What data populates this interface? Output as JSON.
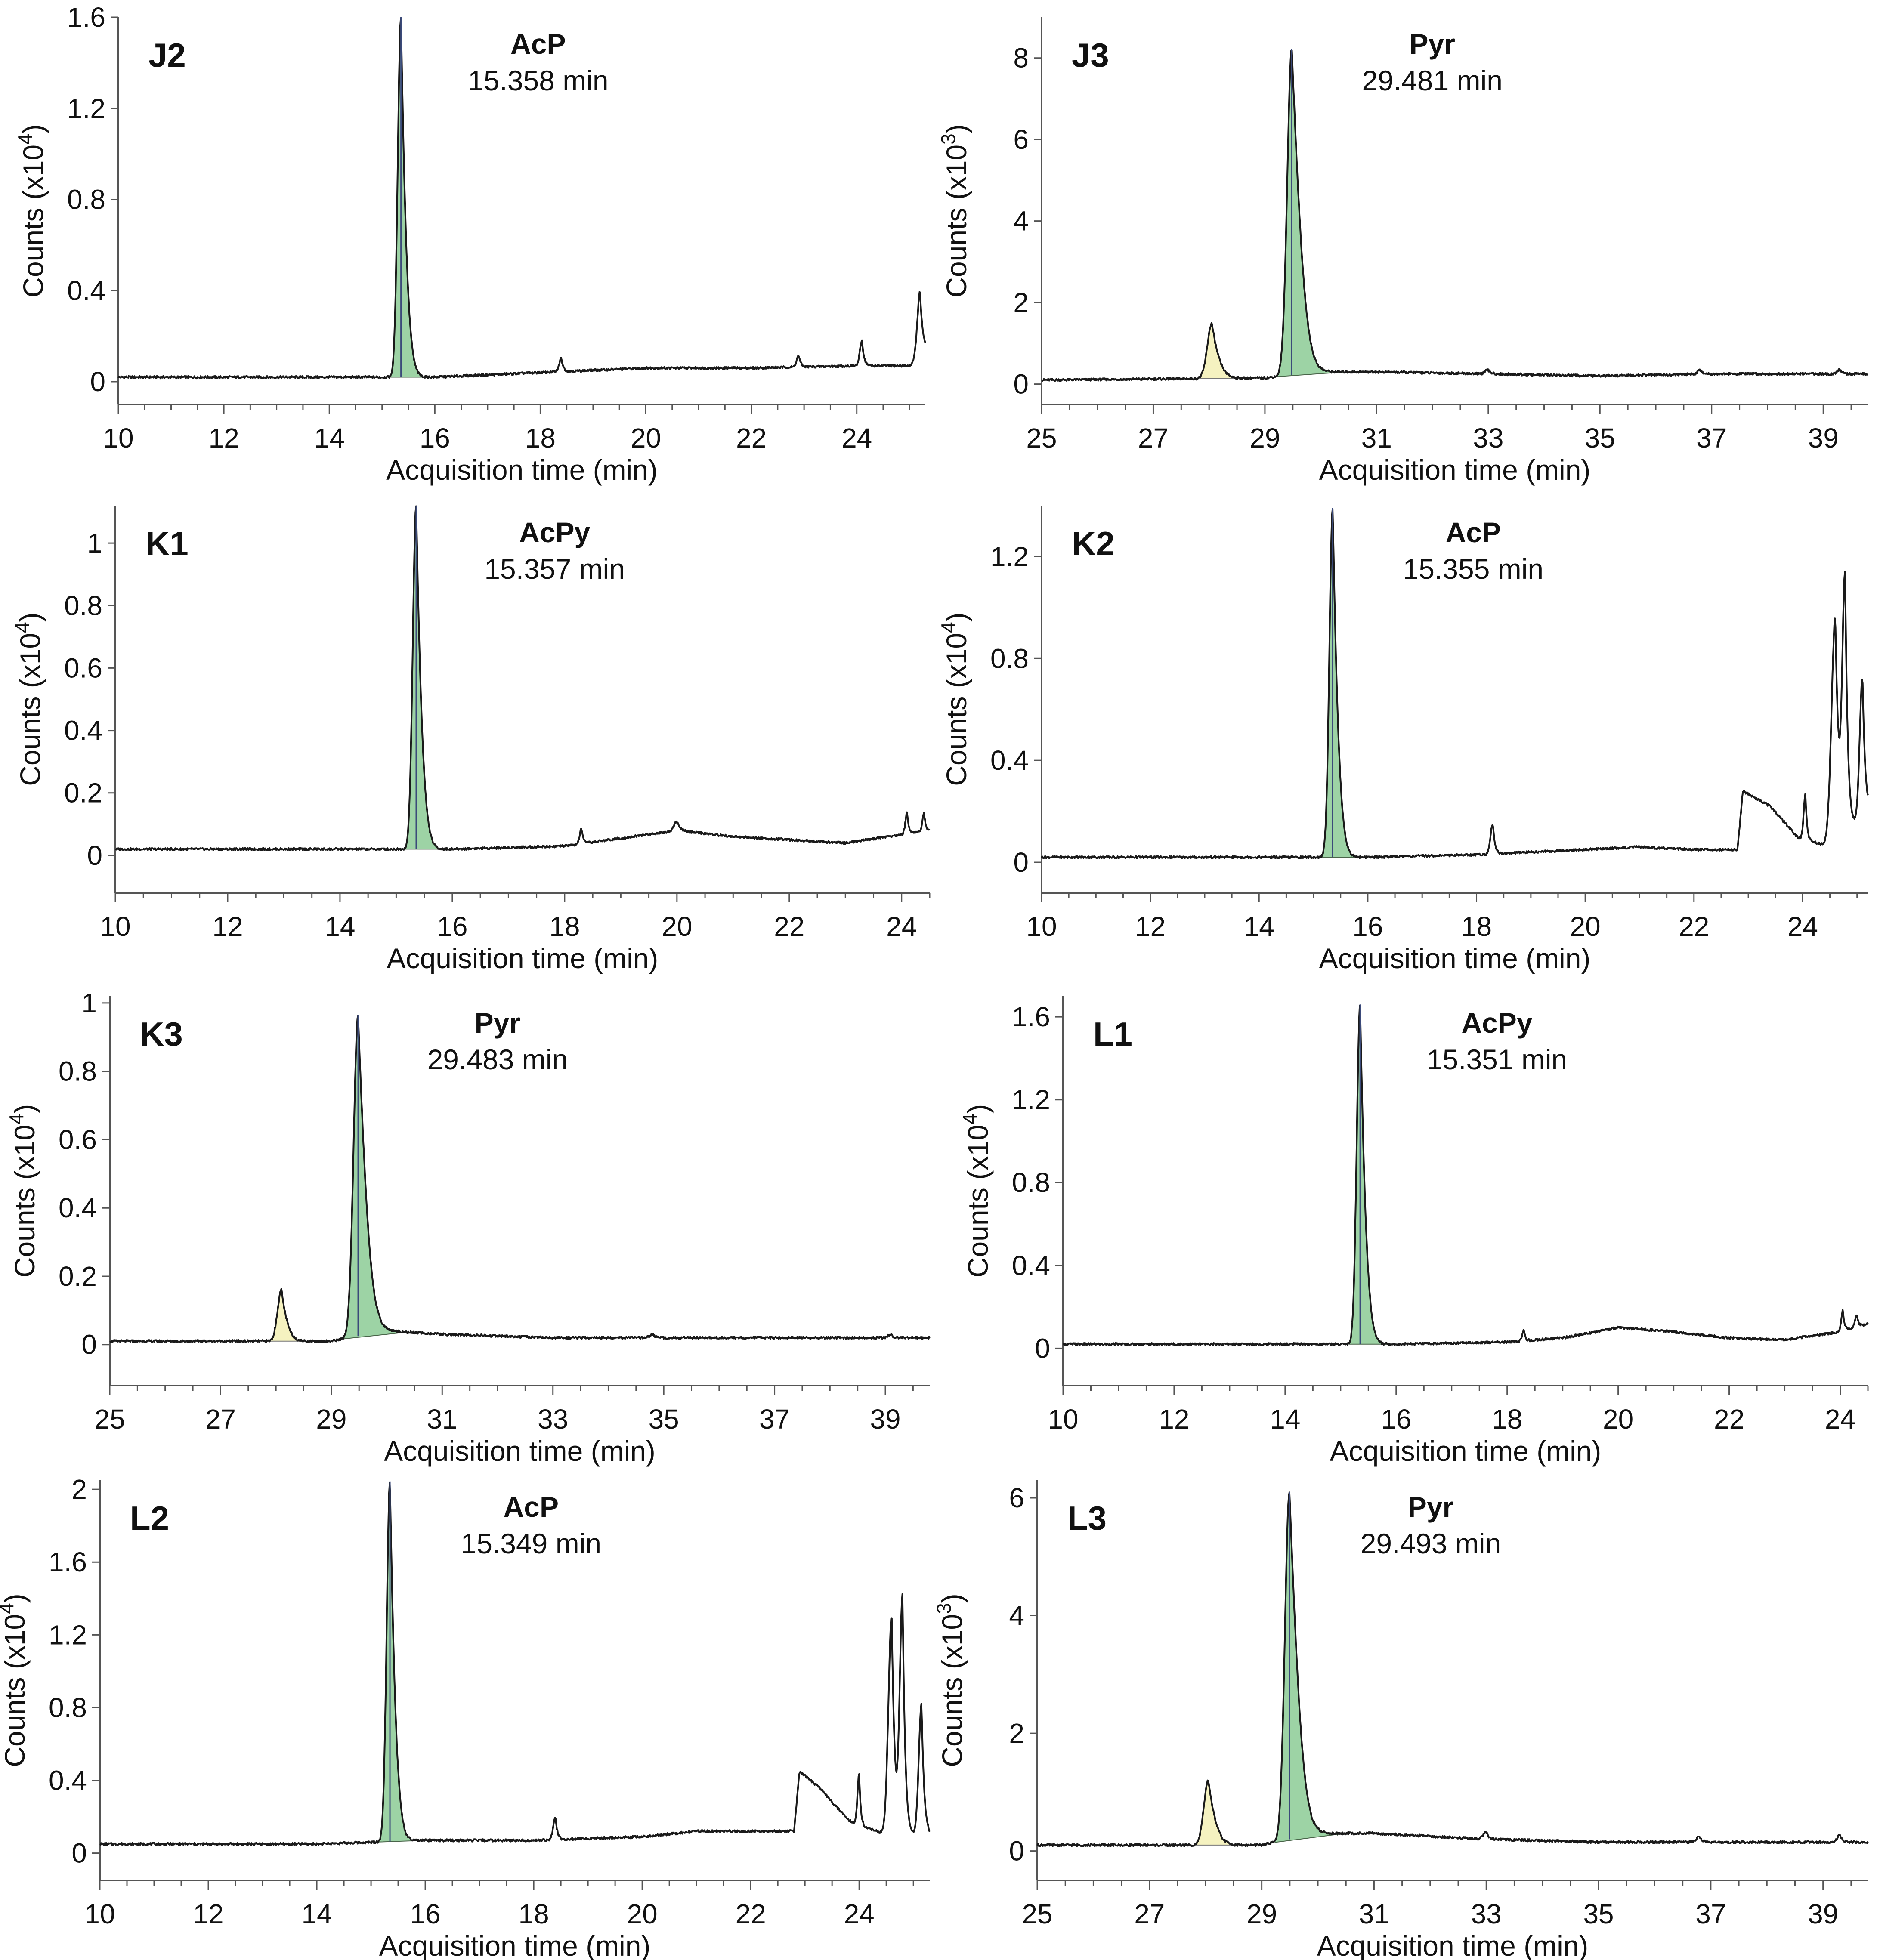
{
  "figure_title": "",
  "chart_data": [
    {
      "id": "J2",
      "type": "line",
      "panel_label": "J2",
      "peak_name": "AcP",
      "peak_time": "15.358 min",
      "xlabel": "Acquisition time (min)",
      "ylabel_prefix": "Counts (x10",
      "ylabel_exp": "4",
      "ylabel_suffix": ")",
      "xlim": [
        10,
        25.3
      ],
      "ylim": [
        -0.1,
        1.6
      ],
      "xticks": [
        10,
        12,
        14,
        16,
        18,
        20,
        22,
        24
      ],
      "xtick_labels": [
        "10",
        "12",
        "14",
        "16",
        "18",
        "20",
        "22",
        "24"
      ],
      "yticks": [
        0,
        0.4,
        0.8,
        1.2,
        1.6
      ],
      "ytick_labels": [
        "0",
        "0.4",
        "0.8",
        "1.2",
        "1.6"
      ],
      "baseline": [
        [
          10,
          0.02
        ],
        [
          14,
          0.02
        ],
        [
          16,
          0.02
        ],
        [
          18,
          0.04
        ],
        [
          20,
          0.06
        ],
        [
          22,
          0.06
        ],
        [
          24,
          0.07
        ],
        [
          25.0,
          0.07
        ],
        [
          25.3,
          0.14
        ]
      ],
      "main_peak": {
        "t": 15.358,
        "h": 1.58,
        "w": 0.06,
        "tail": 0.12
      },
      "minor_peaks": [
        {
          "t": 18.4,
          "h": 0.06,
          "w": 0.04
        },
        {
          "t": 22.9,
          "h": 0.05,
          "w": 0.04
        },
        {
          "t": 24.1,
          "h": 0.11,
          "w": 0.04
        },
        {
          "t": 25.2,
          "h": 0.28,
          "w": 0.05
        }
      ]
    },
    {
      "id": "J3",
      "type": "line",
      "panel_label": "J3",
      "peak_name": "Pyr",
      "peak_time": "29.481 min",
      "xlabel": "Acquisition time (min)",
      "ylabel_prefix": "Counts (x10",
      "ylabel_exp": "3",
      "ylabel_suffix": ")",
      "xlim": [
        25,
        39.8
      ],
      "ylim": [
        -0.5,
        9
      ],
      "xticks": [
        25,
        27,
        29,
        31,
        33,
        35,
        37,
        39
      ],
      "xtick_labels": [
        "25",
        "27",
        "29",
        "31",
        "33",
        "35",
        "37",
        "39"
      ],
      "yticks": [
        0,
        2,
        4,
        6,
        8
      ],
      "ytick_labels": [
        "0",
        "2",
        "4",
        "6",
        "8"
      ],
      "baseline": [
        [
          25,
          0.1
        ],
        [
          29,
          0.15
        ],
        [
          30,
          0.3
        ],
        [
          31,
          0.3
        ],
        [
          33,
          0.25
        ],
        [
          35,
          0.2
        ],
        [
          37,
          0.25
        ],
        [
          39.8,
          0.25
        ]
      ],
      "main_peak": {
        "t": 29.481,
        "h": 8.0,
        "w": 0.08,
        "tail": 0.25
      },
      "side_peak": {
        "t": 28.05,
        "h": 1.35,
        "w": 0.08,
        "tail": 0.15
      },
      "minor_peaks": [
        {
          "t": 33.0,
          "h": 0.1,
          "w": 0.05
        },
        {
          "t": 36.8,
          "h": 0.1,
          "w": 0.05
        },
        {
          "t": 39.3,
          "h": 0.1,
          "w": 0.05
        }
      ]
    },
    {
      "id": "K1",
      "type": "line",
      "panel_label": "K1",
      "peak_name": "AcPy",
      "peak_time": "15.357 min",
      "xlabel": "Acquisition time (min)",
      "ylabel_prefix": "Counts (x10",
      "ylabel_exp": "4",
      "ylabel_suffix": ")",
      "xlim": [
        10,
        24.5
      ],
      "ylim": [
        -0.12,
        1.12
      ],
      "xticks": [
        10,
        12,
        14,
        16,
        18,
        20,
        22,
        24
      ],
      "xtick_labels": [
        "10",
        "12",
        "14",
        "16",
        "18",
        "20",
        "22",
        "24"
      ],
      "yticks": [
        0,
        0.2,
        0.4,
        0.6,
        0.8,
        1
      ],
      "ytick_labels": [
        "0",
        "0.2",
        "0.4",
        "0.6",
        "0.8",
        "1"
      ],
      "baseline": [
        [
          10,
          0.02
        ],
        [
          14,
          0.02
        ],
        [
          16,
          0.02
        ],
        [
          18,
          0.03
        ],
        [
          20,
          0.08
        ],
        [
          21,
          0.06
        ],
        [
          23,
          0.04
        ],
        [
          24.5,
          0.08
        ]
      ],
      "main_peak": {
        "t": 15.357,
        "h": 1.1,
        "w": 0.06,
        "tail": 0.12
      },
      "minor_peaks": [
        {
          "t": 18.3,
          "h": 0.05,
          "w": 0.03
        },
        {
          "t": 20.0,
          "h": 0.03,
          "w": 0.05
        },
        {
          "t": 24.1,
          "h": 0.07,
          "w": 0.03
        },
        {
          "t": 24.4,
          "h": 0.06,
          "w": 0.03
        }
      ]
    },
    {
      "id": "K2",
      "type": "line",
      "panel_label": "K2",
      "peak_name": "AcP",
      "peak_time": "15.355 min",
      "xlabel": "Acquisition time (min)",
      "ylabel_prefix": "Counts (x10",
      "ylabel_exp": "4",
      "ylabel_suffix": ")",
      "xlim": [
        10,
        25.2
      ],
      "ylim": [
        -0.12,
        1.4
      ],
      "xticks": [
        10,
        12,
        14,
        16,
        18,
        20,
        22,
        24
      ],
      "xtick_labels": [
        "10",
        "12",
        "14",
        "16",
        "18",
        "20",
        "22",
        "24"
      ],
      "yticks": [
        0,
        0.4,
        0.8,
        1.2
      ],
      "ytick_labels": [
        "0",
        "0.4",
        "0.8",
        "1.2"
      ],
      "baseline": [
        [
          10,
          0.02
        ],
        [
          14,
          0.02
        ],
        [
          16,
          0.02
        ],
        [
          18,
          0.03
        ],
        [
          20,
          0.05
        ],
        [
          21,
          0.06
        ],
        [
          22,
          0.05
        ],
        [
          22.8,
          0.05
        ],
        [
          22.9,
          0.28
        ],
        [
          23.4,
          0.22
        ],
        [
          23.9,
          0.1
        ],
        [
          24.5,
          0.06
        ],
        [
          25.2,
          0.2
        ]
      ],
      "main_peak": {
        "t": 15.355,
        "h": 1.37,
        "w": 0.06,
        "tail": 0.12
      },
      "minor_peaks": [
        {
          "t": 18.3,
          "h": 0.12,
          "w": 0.04
        },
        {
          "t": 24.05,
          "h": 0.18,
          "w": 0.03
        },
        {
          "t": 24.6,
          "h": 0.88,
          "w": 0.07
        },
        {
          "t": 24.78,
          "h": 0.98,
          "w": 0.05
        },
        {
          "t": 25.1,
          "h": 0.55,
          "w": 0.05
        }
      ]
    },
    {
      "id": "K3",
      "type": "line",
      "panel_label": "K3",
      "peak_name": "Pyr",
      "peak_time": "29.483 min",
      "xlabel": "Acquisition time (min)",
      "ylabel_prefix": "Counts (x10",
      "ylabel_exp": "4",
      "ylabel_suffix": ")",
      "xlim": [
        25,
        39.8
      ],
      "ylim": [
        -0.12,
        1.02
      ],
      "xticks": [
        25,
        27,
        29,
        31,
        33,
        35,
        37,
        39
      ],
      "xtick_labels": [
        "25",
        "27",
        "29",
        "31",
        "33",
        "35",
        "37",
        "39"
      ],
      "yticks": [
        0,
        0.2,
        0.4,
        0.6,
        0.8,
        1
      ],
      "ytick_labels": [
        "0",
        "0.2",
        "0.4",
        "0.6",
        "0.8",
        "1"
      ],
      "baseline": [
        [
          25,
          0.01
        ],
        [
          29,
          0.01
        ],
        [
          30,
          0.04
        ],
        [
          31,
          0.03
        ],
        [
          33,
          0.02
        ],
        [
          35,
          0.02
        ],
        [
          37,
          0.02
        ],
        [
          39.8,
          0.02
        ]
      ],
      "main_peak": {
        "t": 29.483,
        "h": 0.94,
        "w": 0.08,
        "tail": 0.22
      },
      "side_peak": {
        "t": 28.1,
        "h": 0.15,
        "w": 0.07,
        "tail": 0.12
      },
      "minor_peaks": [
        {
          "t": 34.8,
          "h": 0.01,
          "w": 0.05
        },
        {
          "t": 39.1,
          "h": 0.01,
          "w": 0.05
        }
      ]
    },
    {
      "id": "L1",
      "type": "line",
      "panel_label": "L1",
      "peak_name": "AcPy",
      "peak_time": "15.351 min",
      "xlabel": "Acquisition time (min)",
      "ylabel_prefix": "Counts (x10",
      "ylabel_exp": "4",
      "ylabel_suffix": ")",
      "xlim": [
        10,
        24.5
      ],
      "ylim": [
        -0.18,
        1.7
      ],
      "xticks": [
        10,
        12,
        14,
        16,
        18,
        20,
        22,
        24
      ],
      "xtick_labels": [
        "10",
        "12",
        "14",
        "16",
        "18",
        "20",
        "22",
        "24"
      ],
      "yticks": [
        0,
        0.4,
        0.8,
        1.2,
        1.6
      ],
      "ytick_labels": [
        "0",
        "0.4",
        "0.8",
        "1.2",
        "1.6"
      ],
      "baseline": [
        [
          10,
          0.02
        ],
        [
          14,
          0.02
        ],
        [
          16,
          0.02
        ],
        [
          18,
          0.03
        ],
        [
          19,
          0.05
        ],
        [
          20,
          0.1
        ],
        [
          21,
          0.08
        ],
        [
          22,
          0.05
        ],
        [
          23,
          0.04
        ],
        [
          24,
          0.08
        ],
        [
          24.5,
          0.12
        ]
      ],
      "main_peak": {
        "t": 15.351,
        "h": 1.64,
        "w": 0.06,
        "tail": 0.12
      },
      "minor_peaks": [
        {
          "t": 18.3,
          "h": 0.05,
          "w": 0.03
        },
        {
          "t": 24.05,
          "h": 0.1,
          "w": 0.03
        },
        {
          "t": 24.3,
          "h": 0.06,
          "w": 0.03
        }
      ]
    },
    {
      "id": "L2",
      "type": "line",
      "panel_label": "L2",
      "peak_name": "AcP",
      "peak_time": "15.349 min",
      "xlabel": "Acquisition time (min)",
      "ylabel_prefix": "Counts (x10",
      "ylabel_exp": "4",
      "ylabel_suffix": ")",
      "xlim": [
        10,
        25.3
      ],
      "ylim": [
        -0.15,
        2.05
      ],
      "xticks": [
        10,
        12,
        14,
        16,
        18,
        20,
        22,
        24
      ],
      "xtick_labels": [
        "10",
        "12",
        "14",
        "16",
        "18",
        "20",
        "22",
        "24"
      ],
      "yticks": [
        0,
        0.4,
        0.8,
        1.2,
        1.6,
        2
      ],
      "ytick_labels": [
        "0",
        "0.4",
        "0.8",
        "1.2",
        "1.6",
        "2"
      ],
      "baseline": [
        [
          10,
          0.05
        ],
        [
          14,
          0.05
        ],
        [
          16,
          0.07
        ],
        [
          18,
          0.07
        ],
        [
          20,
          0.09
        ],
        [
          21,
          0.12
        ],
        [
          22,
          0.12
        ],
        [
          22.8,
          0.12
        ],
        [
          22.9,
          0.45
        ],
        [
          23.3,
          0.35
        ],
        [
          23.8,
          0.18
        ],
        [
          24.5,
          0.1
        ],
        [
          25.3,
          0.1
        ]
      ],
      "main_peak": {
        "t": 15.349,
        "h": 1.98,
        "w": 0.06,
        "tail": 0.12
      },
      "minor_peaks": [
        {
          "t": 18.4,
          "h": 0.12,
          "w": 0.04
        },
        {
          "t": 24.0,
          "h": 0.28,
          "w": 0.03
        },
        {
          "t": 24.6,
          "h": 1.2,
          "w": 0.06
        },
        {
          "t": 24.8,
          "h": 1.3,
          "w": 0.05
        },
        {
          "t": 25.15,
          "h": 0.72,
          "w": 0.05
        }
      ]
    },
    {
      "id": "L3",
      "type": "line",
      "panel_label": "L3",
      "peak_name": "Pyr",
      "peak_time": "29.493 min",
      "xlabel": "Acquisition time (min)",
      "ylabel_prefix": "Counts (x10",
      "ylabel_exp": "3",
      "ylabel_suffix": ")",
      "xlim": [
        25,
        39.8
      ],
      "ylim": [
        -0.5,
        6.3
      ],
      "xticks": [
        25,
        27,
        29,
        31,
        33,
        35,
        37,
        39
      ],
      "xtick_labels": [
        "25",
        "27",
        "29",
        "31",
        "33",
        "35",
        "37",
        "39"
      ],
      "yticks": [
        0,
        2,
        4,
        6
      ],
      "ytick_labels": [
        "0",
        "2",
        "4",
        "6"
      ],
      "baseline": [
        [
          25,
          0.1
        ],
        [
          29,
          0.1
        ],
        [
          30,
          0.3
        ],
        [
          31,
          0.3
        ],
        [
          33,
          0.2
        ],
        [
          35,
          0.15
        ],
        [
          37,
          0.15
        ],
        [
          39.8,
          0.15
        ]
      ],
      "main_peak": {
        "t": 29.493,
        "h": 5.9,
        "w": 0.08,
        "tail": 0.25
      },
      "side_peak": {
        "t": 28.05,
        "h": 1.1,
        "w": 0.08,
        "tail": 0.15
      },
      "minor_peaks": [
        {
          "t": 33.0,
          "h": 0.12,
          "w": 0.05
        },
        {
          "t": 36.8,
          "h": 0.1,
          "w": 0.05
        },
        {
          "t": 39.3,
          "h": 0.12,
          "w": 0.05
        }
      ]
    }
  ]
}
